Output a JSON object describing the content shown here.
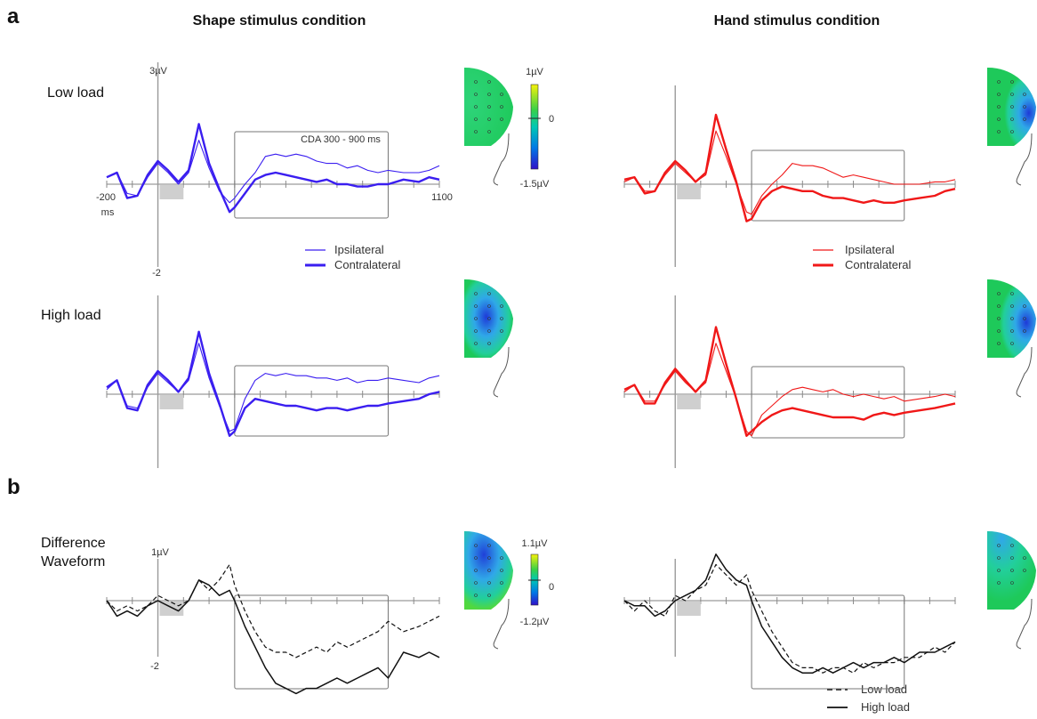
{
  "panel_letters": {
    "a": "a",
    "b": "b"
  },
  "columns": {
    "shape": {
      "title": "Shape stimulus condition",
      "color": "#3a1ef0"
    },
    "hand": {
      "title": "Hand stimulus condition",
      "color": "#f01818"
    }
  },
  "row_labels": {
    "low": "Low load",
    "high": "High load",
    "diff_1": "Difference",
    "diff_2": "Waveform"
  },
  "axis_labels": {
    "top_max": "3µV",
    "top_min": "-2",
    "x_start": "-200",
    "x_start_unit": "ms",
    "x_end": "1100",
    "diff_max": "1µV",
    "diff_min": "-2"
  },
  "window_label": "CDA 300 - 900 ms",
  "legend_ipsi_contra": [
    "Ipsilateral",
    "Contralateral"
  ],
  "legend_load": [
    "Low load",
    "High load"
  ],
  "colorbars": {
    "top": {
      "max": "1µV",
      "mid": "0",
      "min": "-1.5µV"
    },
    "diff": {
      "max": "1.1µV",
      "mid": "0",
      "min": "-1.2µV"
    }
  },
  "chart_data": [
    {
      "type": "line",
      "panel": "a",
      "column": "Shape stimulus condition",
      "row": "Low load",
      "xlim": [
        -200,
        1100
      ],
      "xlabel": "ms",
      "ylim": [
        -2,
        3
      ],
      "ylabel": "µV",
      "highlight_window": [
        300,
        900
      ],
      "series": [
        {
          "name": "Ipsilateral",
          "x": [
            -200,
            -160,
            -120,
            -80,
            -40,
            0,
            40,
            80,
            120,
            160,
            200,
            240,
            280,
            300,
            340,
            380,
            420,
            460,
            500,
            540,
            580,
            620,
            660,
            700,
            740,
            780,
            820,
            860,
            900,
            960,
            1020,
            1060,
            1100
          ],
          "y": [
            0.3,
            0.5,
            -0.4,
            -0.5,
            0.3,
            0.9,
            0.5,
            0.0,
            0.5,
            1.9,
            0.7,
            -0.3,
            -0.8,
            -0.6,
            0.0,
            0.5,
            1.2,
            1.3,
            1.2,
            1.3,
            1.2,
            1.0,
            0.9,
            0.9,
            0.7,
            0.8,
            0.6,
            0.5,
            0.6,
            0.5,
            0.5,
            0.6,
            0.8
          ]
        },
        {
          "name": "Contralateral",
          "x": [
            -200,
            -160,
            -120,
            -80,
            -40,
            0,
            40,
            80,
            120,
            160,
            200,
            240,
            280,
            300,
            340,
            380,
            420,
            460,
            500,
            540,
            580,
            620,
            660,
            700,
            740,
            780,
            820,
            860,
            900,
            960,
            1020,
            1060,
            1100
          ],
          "y": [
            0.3,
            0.5,
            -0.6,
            -0.5,
            0.4,
            1.0,
            0.6,
            0.1,
            0.6,
            2.6,
            0.9,
            -0.2,
            -1.2,
            -1.0,
            -0.4,
            0.2,
            0.4,
            0.5,
            0.4,
            0.3,
            0.2,
            0.1,
            0.2,
            0.0,
            0.0,
            -0.1,
            -0.1,
            0.0,
            0.0,
            0.2,
            0.1,
            0.3,
            0.2
          ]
        }
      ]
    },
    {
      "type": "line",
      "panel": "a",
      "column": "Shape stimulus condition",
      "row": "High load",
      "xlim": [
        -200,
        1100
      ],
      "ylim": [
        -2,
        3
      ],
      "highlight_window": [
        300,
        900
      ],
      "series": [
        {
          "name": "Ipsilateral",
          "x": [
            -200,
            -160,
            -120,
            -80,
            -40,
            0,
            40,
            80,
            120,
            160,
            200,
            240,
            280,
            300,
            340,
            380,
            420,
            460,
            500,
            540,
            580,
            620,
            660,
            700,
            740,
            780,
            820,
            860,
            900,
            960,
            1020,
            1060,
            1100
          ],
          "y": [
            0.2,
            0.6,
            -0.5,
            -0.6,
            0.3,
            0.9,
            0.5,
            0.1,
            0.6,
            2.2,
            0.7,
            -0.5,
            -1.6,
            -1.5,
            -0.2,
            0.6,
            0.9,
            0.8,
            0.9,
            0.8,
            0.8,
            0.7,
            0.7,
            0.6,
            0.7,
            0.5,
            0.6,
            0.6,
            0.7,
            0.6,
            0.5,
            0.7,
            0.8
          ]
        },
        {
          "name": "Contralateral",
          "x": [
            -200,
            -160,
            -120,
            -80,
            -40,
            0,
            40,
            80,
            120,
            160,
            200,
            240,
            280,
            300,
            340,
            380,
            420,
            460,
            500,
            540,
            580,
            620,
            660,
            700,
            740,
            780,
            820,
            860,
            900,
            960,
            1020,
            1060,
            1100
          ],
          "y": [
            0.3,
            0.6,
            -0.6,
            -0.7,
            0.4,
            1.0,
            0.6,
            0.1,
            0.7,
            2.7,
            0.9,
            -0.4,
            -1.8,
            -1.6,
            -0.6,
            -0.2,
            -0.3,
            -0.4,
            -0.5,
            -0.5,
            -0.6,
            -0.7,
            -0.6,
            -0.6,
            -0.7,
            -0.6,
            -0.5,
            -0.5,
            -0.4,
            -0.3,
            -0.2,
            0.0,
            0.1
          ]
        }
      ]
    },
    {
      "type": "line",
      "panel": "a",
      "column": "Hand stimulus condition",
      "row": "Low load",
      "xlim": [
        -200,
        1100
      ],
      "ylim": [
        -2,
        3
      ],
      "highlight_window": [
        300,
        900
      ],
      "series": [
        {
          "name": "Ipsilateral",
          "x": [
            -200,
            -160,
            -120,
            -80,
            -40,
            0,
            40,
            80,
            120,
            160,
            200,
            240,
            280,
            300,
            340,
            380,
            420,
            460,
            500,
            540,
            580,
            620,
            660,
            700,
            740,
            780,
            820,
            860,
            900,
            960,
            1020,
            1060,
            1100
          ],
          "y": [
            0.1,
            0.3,
            -0.3,
            -0.3,
            0.4,
            0.9,
            0.5,
            0.1,
            0.4,
            2.3,
            1.2,
            0.0,
            -1.2,
            -1.3,
            -0.5,
            0.0,
            0.4,
            0.9,
            0.8,
            0.8,
            0.7,
            0.5,
            0.3,
            0.4,
            0.3,
            0.2,
            0.1,
            0.0,
            0.0,
            0.0,
            0.1,
            0.1,
            0.2
          ]
        },
        {
          "name": "Contralateral",
          "x": [
            -200,
            -160,
            -120,
            -80,
            -40,
            0,
            40,
            80,
            120,
            160,
            200,
            240,
            280,
            300,
            340,
            380,
            420,
            460,
            500,
            540,
            580,
            620,
            660,
            700,
            740,
            780,
            820,
            860,
            900,
            960,
            1020,
            1060,
            1100
          ],
          "y": [
            0.2,
            0.3,
            -0.4,
            -0.3,
            0.5,
            1.0,
            0.6,
            0.1,
            0.5,
            3.0,
            1.5,
            0.1,
            -1.6,
            -1.5,
            -0.7,
            -0.3,
            -0.1,
            -0.2,
            -0.3,
            -0.3,
            -0.5,
            -0.6,
            -0.6,
            -0.7,
            -0.8,
            -0.7,
            -0.8,
            -0.8,
            -0.7,
            -0.6,
            -0.5,
            -0.3,
            -0.2
          ]
        }
      ]
    },
    {
      "type": "line",
      "panel": "a",
      "column": "Hand stimulus condition",
      "row": "High load",
      "xlim": [
        -200,
        1100
      ],
      "ylim": [
        -2,
        3
      ],
      "highlight_window": [
        300,
        900
      ],
      "series": [
        {
          "name": "Ipsilateral",
          "x": [
            -200,
            -160,
            -120,
            -80,
            -40,
            0,
            40,
            80,
            120,
            160,
            200,
            240,
            280,
            300,
            340,
            380,
            420,
            460,
            500,
            540,
            580,
            620,
            660,
            700,
            740,
            780,
            820,
            860,
            900,
            960,
            1020,
            1060,
            1100
          ],
          "y": [
            0.1,
            0.4,
            -0.3,
            -0.3,
            0.4,
            1.0,
            0.5,
            0.1,
            0.5,
            2.2,
            1.0,
            -0.2,
            -1.6,
            -1.8,
            -0.9,
            -0.5,
            -0.1,
            0.2,
            0.3,
            0.2,
            0.1,
            0.2,
            0.0,
            -0.1,
            0.0,
            -0.1,
            -0.2,
            -0.1,
            -0.3,
            -0.2,
            -0.1,
            0.0,
            -0.1
          ]
        },
        {
          "name": "Contralateral",
          "x": [
            -200,
            -160,
            -120,
            -80,
            -40,
            0,
            40,
            80,
            120,
            160,
            200,
            240,
            280,
            300,
            340,
            380,
            420,
            460,
            500,
            540,
            580,
            620,
            660,
            700,
            740,
            780,
            820,
            860,
            900,
            960,
            1020,
            1060,
            1100
          ],
          "y": [
            0.2,
            0.4,
            -0.4,
            -0.4,
            0.5,
            1.1,
            0.6,
            0.1,
            0.6,
            2.9,
            1.3,
            -0.2,
            -1.8,
            -1.6,
            -1.2,
            -0.9,
            -0.7,
            -0.6,
            -0.7,
            -0.8,
            -0.9,
            -1.0,
            -1.0,
            -1.0,
            -1.1,
            -0.9,
            -0.8,
            -0.9,
            -0.8,
            -0.7,
            -0.6,
            -0.5,
            -0.4
          ]
        }
      ]
    },
    {
      "type": "line",
      "panel": "b",
      "column": "Shape stimulus condition",
      "row": "Difference Waveform",
      "xlim": [
        -200,
        1100
      ],
      "ylim": [
        -2,
        1
      ],
      "highlight_window": [
        300,
        900
      ],
      "series": [
        {
          "name": "Low load",
          "x": [
            -200,
            -160,
            -120,
            -80,
            -40,
            0,
            40,
            80,
            120,
            160,
            200,
            240,
            280,
            300,
            340,
            380,
            420,
            460,
            500,
            540,
            580,
            620,
            660,
            700,
            740,
            780,
            820,
            860,
            900,
            960,
            1020,
            1060,
            1100
          ],
          "y": [
            0.0,
            -0.2,
            -0.1,
            -0.2,
            -0.1,
            0.1,
            0.0,
            -0.1,
            0.0,
            0.4,
            0.2,
            0.4,
            0.7,
            0.3,
            -0.2,
            -0.6,
            -0.9,
            -1.0,
            -1.0,
            -1.1,
            -1.0,
            -0.9,
            -1.0,
            -0.8,
            -0.9,
            -0.8,
            -0.7,
            -0.6,
            -0.4,
            -0.6,
            -0.5,
            -0.4,
            -0.3
          ]
        },
        {
          "name": "High load",
          "x": [
            -200,
            -160,
            -120,
            -80,
            -40,
            0,
            40,
            80,
            120,
            160,
            200,
            240,
            280,
            300,
            340,
            380,
            420,
            460,
            500,
            540,
            580,
            620,
            660,
            700,
            740,
            780,
            820,
            860,
            900,
            960,
            1020,
            1060,
            1100
          ],
          "y": [
            0.0,
            -0.3,
            -0.2,
            -0.3,
            -0.1,
            0.0,
            -0.1,
            -0.2,
            0.0,
            0.4,
            0.3,
            0.1,
            0.2,
            0.0,
            -0.5,
            -0.9,
            -1.3,
            -1.6,
            -1.7,
            -1.8,
            -1.7,
            -1.7,
            -1.6,
            -1.5,
            -1.6,
            -1.5,
            -1.4,
            -1.3,
            -1.5,
            -1.0,
            -1.1,
            -1.0,
            -1.1
          ]
        }
      ]
    },
    {
      "type": "line",
      "panel": "b",
      "column": "Hand stimulus condition",
      "row": "Difference Waveform",
      "xlim": [
        -200,
        1100
      ],
      "ylim": [
        -2,
        1
      ],
      "highlight_window": [
        300,
        900
      ],
      "series": [
        {
          "name": "Low load",
          "x": [
            -200,
            -160,
            -120,
            -80,
            -40,
            0,
            40,
            80,
            120,
            160,
            200,
            240,
            280,
            300,
            340,
            380,
            420,
            460,
            500,
            540,
            580,
            620,
            660,
            700,
            740,
            780,
            820,
            860,
            900,
            960,
            1020,
            1060,
            1100
          ],
          "y": [
            0.0,
            -0.2,
            0.0,
            -0.2,
            -0.3,
            0.1,
            0.0,
            0.2,
            0.3,
            0.7,
            0.5,
            0.3,
            0.5,
            0.2,
            -0.2,
            -0.6,
            -0.9,
            -1.2,
            -1.3,
            -1.3,
            -1.4,
            -1.3,
            -1.3,
            -1.4,
            -1.2,
            -1.3,
            -1.2,
            -1.2,
            -1.1,
            -1.1,
            -0.9,
            -1.0,
            -0.8
          ]
        },
        {
          "name": "High load",
          "x": [
            -200,
            -160,
            -120,
            -80,
            -40,
            0,
            40,
            80,
            120,
            160,
            200,
            240,
            280,
            300,
            340,
            380,
            420,
            460,
            500,
            540,
            580,
            620,
            660,
            700,
            740,
            780,
            820,
            860,
            900,
            960,
            1020,
            1060,
            1100
          ],
          "y": [
            0.0,
            -0.1,
            -0.1,
            -0.3,
            -0.2,
            0.0,
            0.1,
            0.2,
            0.4,
            0.9,
            0.6,
            0.4,
            0.3,
            0.0,
            -0.5,
            -0.8,
            -1.1,
            -1.3,
            -1.4,
            -1.4,
            -1.3,
            -1.4,
            -1.3,
            -1.2,
            -1.3,
            -1.2,
            -1.2,
            -1.1,
            -1.2,
            -1.0,
            -1.0,
            -0.9,
            -0.8
          ]
        }
      ]
    }
  ]
}
